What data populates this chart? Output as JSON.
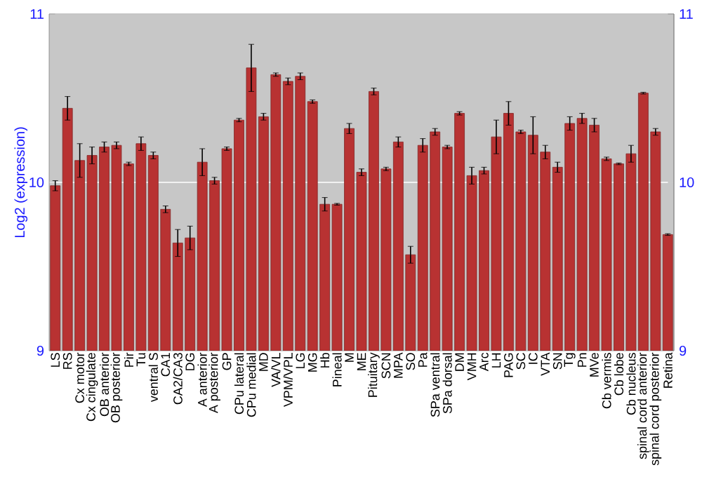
{
  "chart_data": {
    "type": "bar",
    "ylabel": "Log2 (expression)",
    "categories": [
      "LS",
      "RS",
      "Cx motor",
      "Cx cingulate",
      "OB anterior",
      "OB posterior",
      "Pir",
      "Tu",
      "ventral S",
      "CA1",
      "CA2/CA3",
      "DG",
      "A anterior",
      "A posterior",
      "GP",
      "CPu lateral",
      "CPu medial",
      "MD",
      "VA/VL",
      "VPM/VPL",
      "LG",
      "MG",
      "Hb",
      "Pineal",
      "M",
      "ME",
      "Pituitary",
      "SCN",
      "MPA",
      "SO",
      "Pa",
      "SPa ventral",
      "SPa dorsal",
      "DM",
      "VMH",
      "Arc",
      "LH",
      "PAG",
      "SC",
      "IC",
      "VTA",
      "SN",
      "Tg",
      "Pn",
      "MVe",
      "Cb vermis",
      "Cb lobe",
      "Cb nucleus",
      "spinal cord anterior",
      "spinal cord posterior",
      "Retina"
    ],
    "values": [
      9.98,
      10.44,
      10.13,
      10.16,
      10.21,
      10.22,
      10.11,
      10.23,
      10.16,
      9.84,
      9.64,
      9.67,
      10.12,
      10.01,
      10.2,
      10.37,
      10.68,
      10.39,
      10.64,
      10.6,
      10.63,
      10.48,
      9.87,
      9.87,
      10.32,
      10.06,
      10.54,
      10.08,
      10.24,
      9.57,
      10.22,
      10.3,
      10.21,
      10.41,
      10.04,
      10.07,
      10.27,
      10.41,
      10.3,
      10.28,
      10.18,
      10.09,
      10.35,
      10.38,
      10.34,
      10.14,
      10.11,
      10.17,
      10.53,
      10.3,
      9.69
    ],
    "errors": [
      0.03,
      0.07,
      0.1,
      0.05,
      0.03,
      0.02,
      0.01,
      0.04,
      0.02,
      0.02,
      0.08,
      0.07,
      0.08,
      0.02,
      0.01,
      0.01,
      0.14,
      0.02,
      0.01,
      0.02,
      0.02,
      0.01,
      0.04,
      0.005,
      0.03,
      0.02,
      0.02,
      0.01,
      0.03,
      0.05,
      0.04,
      0.02,
      0.01,
      0.01,
      0.05,
      0.02,
      0.1,
      0.07,
      0.01,
      0.11,
      0.04,
      0.03,
      0.04,
      0.03,
      0.04,
      0.01,
      0.005,
      0.05,
      0.005,
      0.02,
      0.005
    ],
    "color": "#b83232",
    "ylim": [
      9,
      11
    ],
    "yticks": [
      9,
      10,
      11
    ],
    "y2lim": [
      9,
      11
    ],
    "y2ticks": [
      9,
      10,
      11
    ],
    "grid": "y"
  }
}
